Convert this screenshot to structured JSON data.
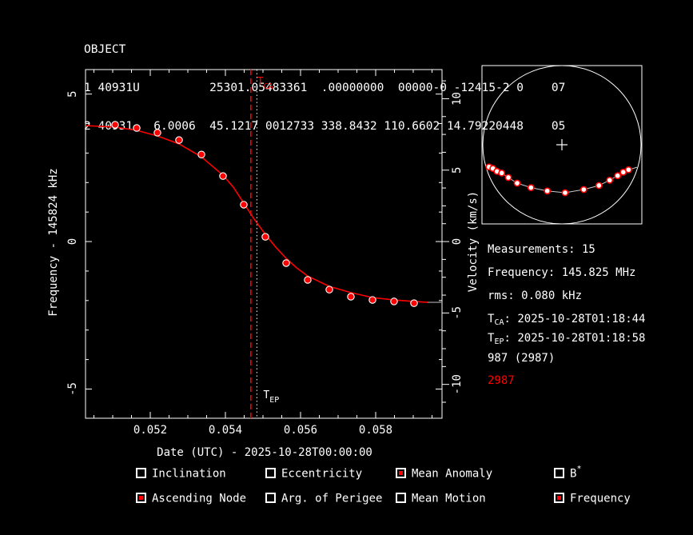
{
  "colors": {
    "background": "#000000",
    "foreground": "#ffffff",
    "accent": "#ff0000",
    "track_line": "#c8c8c8",
    "curve_tail": "#8c8c8c"
  },
  "tle": {
    "name": "OBJECT",
    "line1": "1 40931U          25301.05483361  .00000000  00000-0 -12415-2 0    07",
    "line2": "2 40931   6.0006  45.1217 0012733 338.8432 110.6602 14.79220448    05"
  },
  "info": {
    "rows": [
      {
        "pre": "Measurements: 15",
        "sub": "",
        "rest": ""
      },
      {
        "pre": "Frequency: 145.825 MHz",
        "sub": "",
        "rest": ""
      },
      {
        "pre": "rms: 0.080 kHz",
        "sub": "",
        "rest": ""
      },
      {
        "pre": "T",
        "sub": "CA",
        "rest": ": 2025-10-28T01:18:44"
      },
      {
        "pre": "T",
        "sub": "EP",
        "rest": ": 2025-10-28T01:18:58"
      },
      {
        "pre": "987 (2987)",
        "sub": "",
        "rest": ""
      },
      {
        "pre": "2987",
        "sub": "",
        "rest": "",
        "color": "#ff0000"
      }
    ]
  },
  "fit_toggles": {
    "items": [
      {
        "label": "Inclination",
        "sup": "",
        "checked": false
      },
      {
        "label": "Eccentricity",
        "sup": "",
        "checked": false
      },
      {
        "label": "Mean Anomaly",
        "sup": "",
        "checked": true
      },
      {
        "label": "B",
        "sup": "*",
        "checked": false
      },
      {
        "label": "Ascending Node",
        "sup": "",
        "checked": true
      },
      {
        "label": "Arg. of Perigee",
        "sup": "",
        "checked": false
      },
      {
        "label": "Mean Motion",
        "sup": "",
        "checked": false
      },
      {
        "label": "Frequency",
        "sup": "",
        "checked": true
      }
    ]
  },
  "chart_data": {
    "main": {
      "type": "scatter",
      "x_axis": {
        "label": "Date (UTC) - 2025-10-28T00:00:00",
        "range": [
          0.0502766,
          0.0597659
        ],
        "major_ticks": [
          0.052,
          0.054,
          0.056,
          0.058
        ],
        "tick_labels": [
          "0.052",
          "0.054",
          "0.056",
          "0.058"
        ],
        "minor_step": 0.0005
      },
      "y_left": {
        "label": "Frequency - 145824 kHz",
        "range": [
          -5.99,
          5.83
        ],
        "major_ticks": [
          5,
          0,
          -5
        ],
        "minor_step": 1
      },
      "y_right": {
        "label": "Velocity (km/s)",
        "range": [
          -12.37,
          12.04
        ],
        "major_ticks": [
          10,
          5,
          0,
          -5,
          -10
        ],
        "minor_step": 1.25
      },
      "points": [
        [
          0.051064,
          3.96
        ],
        [
          0.051638,
          3.85
        ],
        [
          0.052191,
          3.69
        ],
        [
          0.052766,
          3.44
        ],
        [
          0.053362,
          2.95
        ],
        [
          0.053936,
          2.22
        ],
        [
          0.054489,
          1.25
        ],
        [
          0.055064,
          0.16
        ],
        [
          0.055617,
          -0.73
        ],
        [
          0.056191,
          -1.3
        ],
        [
          0.056766,
          -1.63
        ],
        [
          0.05734,
          -1.87
        ],
        [
          0.057915,
          -1.98
        ],
        [
          0.058489,
          -2.03
        ],
        [
          0.059021,
          -2.09
        ]
      ],
      "fit_curve": [
        [
          0.050277,
          3.93
        ],
        [
          0.051064,
          3.88
        ],
        [
          0.051638,
          3.77
        ],
        [
          0.052191,
          3.58
        ],
        [
          0.052766,
          3.31
        ],
        [
          0.053362,
          2.87
        ],
        [
          0.053936,
          2.25
        ],
        [
          0.054213,
          1.84
        ],
        [
          0.054489,
          1.3
        ],
        [
          0.054766,
          0.76
        ],
        [
          0.055064,
          0.24
        ],
        [
          0.05534,
          -0.19
        ],
        [
          0.055617,
          -0.57
        ],
        [
          0.055894,
          -0.89
        ],
        [
          0.056191,
          -1.17
        ],
        [
          0.056766,
          -1.52
        ],
        [
          0.05734,
          -1.73
        ],
        [
          0.057915,
          -1.9
        ],
        [
          0.058489,
          -1.98
        ],
        [
          0.059021,
          -2.03
        ],
        [
          0.059383,
          -2.06
        ]
      ],
      "fit_tail": [
        [
          0.059383,
          -2.06
        ],
        [
          0.0597659,
          -2.06
        ]
      ],
      "markers": [
        {
          "id": "tca",
          "time": 0.0546759,
          "style": "dashed",
          "color": "#ff0000",
          "label": "T",
          "label_sub": "CA",
          "label_side": "top"
        },
        {
          "id": "tep",
          "time": 0.054838,
          "style": "dotted",
          "color": "#ffffff",
          "label": "T",
          "label_sub": "EP",
          "label_side": "bottom"
        }
      ]
    },
    "sky": {
      "type": "sky-track",
      "center_mark": "+",
      "points": [
        [
          -0.922,
          0.28
        ],
        [
          -0.872,
          0.3
        ],
        [
          -0.821,
          0.336
        ],
        [
          -0.761,
          0.357
        ],
        [
          -0.677,
          0.414
        ],
        [
          -0.566,
          0.485
        ],
        [
          -0.391,
          0.542
        ],
        [
          -0.185,
          0.583
        ],
        [
          0.04,
          0.606
        ],
        [
          0.276,
          0.566
        ],
        [
          0.468,
          0.515
        ],
        [
          0.603,
          0.448
        ],
        [
          0.704,
          0.391
        ],
        [
          0.775,
          0.346
        ],
        [
          0.842,
          0.316
        ]
      ],
      "track_line": [
        [
          -0.96,
          0.264
        ],
        [
          -0.922,
          0.28
        ],
        [
          -0.872,
          0.3
        ],
        [
          -0.821,
          0.336
        ],
        [
          -0.761,
          0.357
        ],
        [
          -0.677,
          0.414
        ],
        [
          -0.566,
          0.485
        ],
        [
          -0.391,
          0.542
        ],
        [
          -0.185,
          0.583
        ],
        [
          0.04,
          0.606
        ],
        [
          0.276,
          0.566
        ],
        [
          0.468,
          0.515
        ],
        [
          0.603,
          0.448
        ],
        [
          0.704,
          0.391
        ],
        [
          0.775,
          0.346
        ],
        [
          0.842,
          0.316
        ],
        [
          0.949,
          0.284
        ]
      ]
    }
  }
}
